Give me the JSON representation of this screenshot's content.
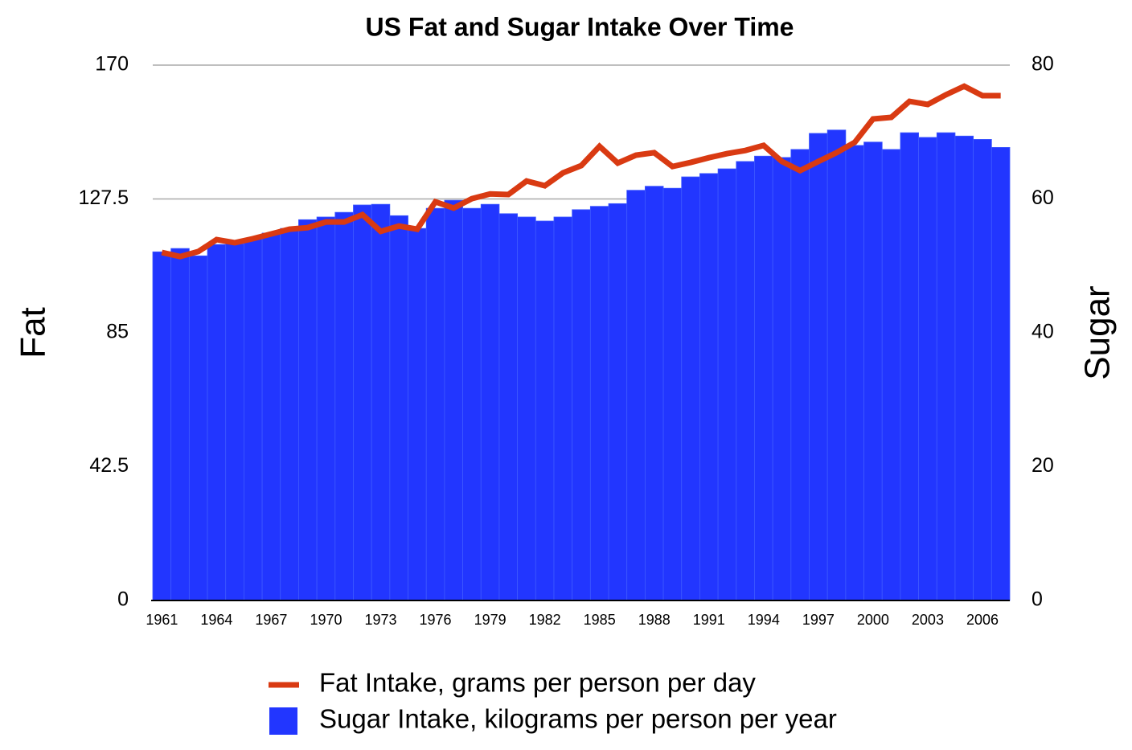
{
  "chart_data": {
    "type": "combo",
    "title": "US Fat and Sugar Intake Over Time",
    "y_label": "Fat",
    "y2_label": "Sugar",
    "categories": [
      "1961",
      null,
      null,
      "1964",
      null,
      null,
      "1967",
      null,
      null,
      "1970",
      null,
      null,
      "1973",
      null,
      null,
      "1976",
      null,
      null,
      "1979",
      null,
      null,
      "1982",
      null,
      null,
      "1985",
      null,
      null,
      "1988",
      null,
      null,
      "1991",
      null,
      null,
      "1994",
      null,
      null,
      "1997",
      null,
      null,
      "2000",
      null,
      null,
      "2003",
      null,
      null,
      "2006",
      null
    ],
    "series": [
      {
        "name": "Fat Intake, grams per person per day",
        "type": "line",
        "axis": "y",
        "color": "#d93a12",
        "values": [
          110.5,
          109.2,
          110.8,
          114.6,
          113.6,
          114.9,
          116.4,
          117.9,
          118.4,
          120.2,
          120.2,
          122.5,
          117.2,
          118.9,
          117.9,
          126.6,
          124.6,
          127.6,
          129.1,
          128.9,
          133.2,
          131.7,
          135.8,
          138.1,
          144.2,
          138.9,
          141.4,
          142.2,
          137.8,
          139.1,
          140.6,
          141.9,
          142.9,
          144.5,
          139.4,
          136.5,
          139.4,
          142.2,
          145.5,
          152.9,
          153.4,
          158.5,
          157.5,
          160.6,
          163.3,
          160.3,
          160.3
        ]
      },
      {
        "name": "Sugar Intake, kilograms per person per year",
        "type": "bar",
        "axis": "y2",
        "color": "#2236ff",
        "values": [
          52.1,
          52.6,
          51.5,
          53.2,
          53.3,
          54.1,
          54.9,
          55.6,
          56.9,
          57.3,
          58.0,
          59.1,
          59.2,
          57.5,
          55.6,
          58.6,
          59.8,
          58.6,
          59.2,
          57.8,
          57.3,
          56.7,
          57.3,
          58.4,
          58.9,
          59.3,
          61.3,
          61.9,
          61.6,
          63.3,
          63.8,
          64.5,
          65.6,
          66.4,
          66.2,
          67.4,
          69.8,
          70.3,
          68.0,
          68.5,
          67.4,
          69.9,
          69.2,
          69.9,
          69.4,
          68.9,
          67.7
        ]
      }
    ],
    "ylim": [
      0,
      170
    ],
    "yticks": [
      0,
      42.5,
      85,
      127.5,
      170
    ],
    "y2lim": [
      0,
      80
    ],
    "y2ticks": [
      0,
      20,
      40,
      60,
      80
    ],
    "grid": true
  }
}
